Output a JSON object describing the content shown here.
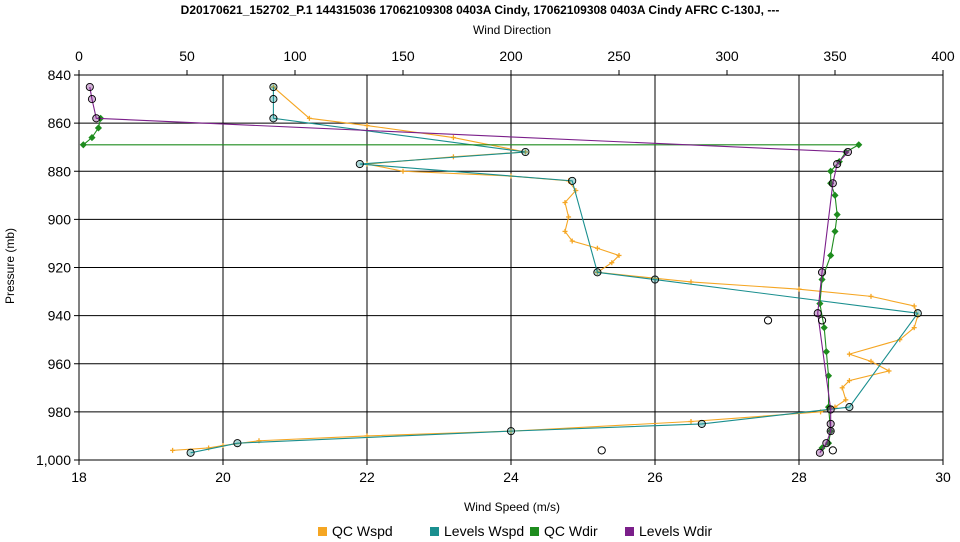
{
  "chart_data": {
    "type": "line",
    "title": "D20170621_152702_P.1 144315036 17062109308 0403A Cindy, 17062109308 0403A Cindy AFRC C-130J, ---",
    "xlabel_bottom": "Wind Speed (m/s)",
    "xlabel_top": "Wind Direction",
    "ylabel": "Pressure (mb)",
    "x_bottom_range": [
      18,
      30
    ],
    "x_bottom_ticks": [
      "18",
      "20",
      "22",
      "24",
      "26",
      "28",
      "30"
    ],
    "x_top_range": [
      0,
      400
    ],
    "x_top_ticks": [
      "0",
      "50",
      "100",
      "150",
      "200",
      "250",
      "300",
      "350",
      "400"
    ],
    "y_range": [
      840,
      1000
    ],
    "y_inverted": true,
    "y_ticks": [
      "840",
      "860",
      "880",
      "900",
      "920",
      "940",
      "960",
      "980",
      "1,000"
    ],
    "grid": true,
    "legend_position": "bottom",
    "series": [
      {
        "name": "QC Wspd",
        "axis": "bottom",
        "color": "#f5a623",
        "marker": "plus",
        "points": [
          [
            20.7,
            845
          ],
          [
            21.2,
            858
          ],
          [
            22.0,
            861
          ],
          [
            23.2,
            866
          ],
          [
            24.2,
            872
          ],
          [
            23.2,
            874
          ],
          [
            22.0,
            877
          ],
          [
            22.5,
            880
          ],
          [
            24.0,
            882
          ],
          [
            24.8,
            884
          ],
          [
            24.9,
            888
          ],
          [
            24.75,
            893
          ],
          [
            24.8,
            899
          ],
          [
            24.75,
            905
          ],
          [
            24.85,
            909
          ],
          [
            25.2,
            912
          ],
          [
            25.5,
            915
          ],
          [
            25.4,
            918
          ],
          [
            25.2,
            922
          ],
          [
            26.5,
            926
          ],
          [
            28.0,
            929
          ],
          [
            29.0,
            932
          ],
          [
            29.6,
            936
          ],
          [
            29.65,
            940
          ],
          [
            29.6,
            945
          ],
          [
            29.4,
            950
          ],
          [
            28.7,
            956
          ],
          [
            29.0,
            959
          ],
          [
            29.25,
            963
          ],
          [
            28.7,
            967
          ],
          [
            28.6,
            970
          ],
          [
            28.65,
            975
          ],
          [
            28.5,
            978
          ],
          [
            28.3,
            980
          ],
          [
            26.5,
            984
          ],
          [
            24.0,
            988
          ],
          [
            22.0,
            990
          ],
          [
            20.5,
            992
          ],
          [
            20.0,
            994
          ],
          [
            19.8,
            995
          ],
          [
            19.3,
            996
          ]
        ]
      },
      {
        "name": "Levels Wspd",
        "axis": "bottom",
        "color": "#1a8f8f",
        "marker": "circle",
        "points": [
          [
            20.7,
            845
          ],
          [
            20.7,
            850
          ],
          [
            20.7,
            858
          ],
          [
            24.2,
            872
          ],
          [
            21.9,
            877
          ],
          [
            24.85,
            884
          ],
          [
            25.2,
            922
          ],
          [
            26.0,
            925
          ],
          [
            29.65,
            939
          ],
          [
            28.7,
            978
          ],
          [
            26.65,
            985
          ],
          [
            24.0,
            988
          ],
          [
            20.2,
            993
          ],
          [
            19.55,
            997
          ]
        ]
      },
      {
        "name": "QC Wdir",
        "axis": "top",
        "color": "#1e8c1e",
        "marker": "diamond",
        "points": [
          [
            10,
            858
          ],
          [
            9,
            862
          ],
          [
            6,
            866
          ],
          [
            2,
            869
          ],
          [
            361,
            869
          ],
          [
            355,
            872
          ],
          [
            352,
            876
          ],
          [
            348,
            880
          ],
          [
            348,
            885
          ],
          [
            350,
            890
          ],
          [
            351,
            898
          ],
          [
            350,
            905
          ],
          [
            348,
            915
          ],
          [
            344,
            925
          ],
          [
            343,
            935
          ],
          [
            345,
            945
          ],
          [
            346,
            955
          ],
          [
            347,
            965
          ],
          [
            347,
            978
          ],
          [
            348,
            988
          ],
          [
            347,
            993
          ],
          [
            344,
            995
          ]
        ]
      },
      {
        "name": "Levels Wdir",
        "axis": "top",
        "color": "#7b1f8a",
        "marker": "circle",
        "points": [
          [
            5,
            845
          ],
          [
            6,
            850
          ],
          [
            8,
            858
          ],
          [
            356,
            872
          ],
          [
            351,
            877
          ],
          [
            349,
            885
          ],
          [
            344,
            922
          ],
          [
            342,
            939
          ],
          [
            348,
            979
          ],
          [
            348,
            985
          ],
          [
            348,
            988
          ],
          [
            346,
            993
          ],
          [
            343,
            997
          ]
        ]
      }
    ],
    "extra_points": [
      {
        "axis": "top",
        "x": 319,
        "y": 942
      },
      {
        "axis": "top",
        "x": 344,
        "y": 942
      },
      {
        "axis": "top",
        "x": 242,
        "y": 996
      },
      {
        "axis": "top",
        "x": 349,
        "y": 996
      }
    ]
  }
}
